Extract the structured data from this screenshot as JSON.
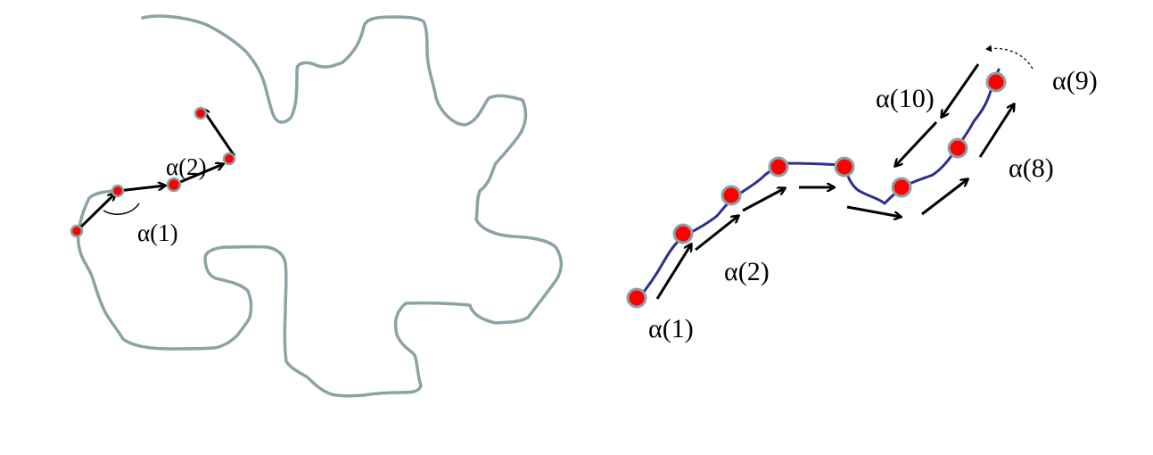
{
  "colors": {
    "outline": "#8aa3a6",
    "curve": "#2e2e8f",
    "point_fill": "#ff0000",
    "point_ring": "#8aa3a6",
    "arrow": "#000000"
  },
  "left_panel": {
    "labels": {
      "alpha1": "α(1)",
      "alpha2": "α(2)"
    }
  },
  "right_panel": {
    "labels": {
      "alpha1": "α(1)",
      "alpha2": "α(2)",
      "alpha8": "α(8)",
      "alpha9": "α(9)",
      "alpha10": "α(10)"
    }
  }
}
